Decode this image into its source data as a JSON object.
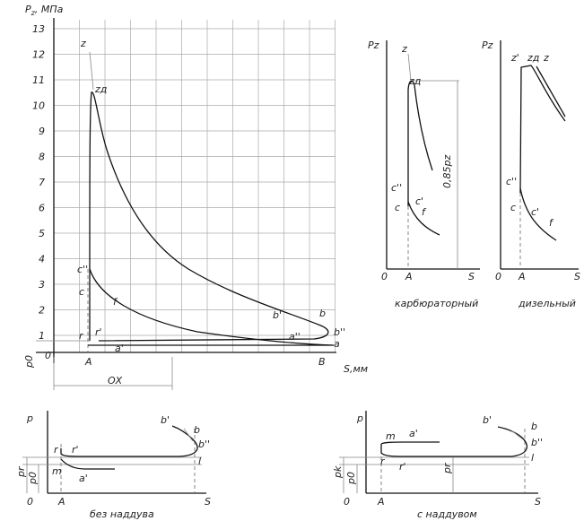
{
  "main": {
    "axis_symbol": "P",
    "axis_sub": "z",
    "axis_unit": ", МПа",
    "y_ticks": [
      "13",
      "12",
      "11",
      "10",
      "9",
      "8",
      "7",
      "6",
      "5",
      "4",
      "3",
      "2",
      "1"
    ],
    "origin": "0",
    "x_axis": "S,мм",
    "p0": "p0",
    "ox": "ОХ",
    "points": {
      "z": "z",
      "zd": "zд",
      "c2": "c''",
      "c": "c",
      "f": "f",
      "r": "r",
      "r1": "r'",
      "a1": "a'",
      "A": "A",
      "B": "B",
      "b1": "b'",
      "b": "b",
      "b2": "b''",
      "a2": "a''",
      "a": "a"
    }
  },
  "carb": {
    "axis": "Pz",
    "z": "z",
    "zd": "zд",
    "c2": "c''",
    "c1": "c'",
    "c": "c",
    "f": "f",
    "origin": "0",
    "A": "A",
    "S": "S",
    "dim": "0,85pz",
    "caption": "карбюраторный"
  },
  "diesel": {
    "axis": "Pz",
    "z1": "z'",
    "zd": "zд",
    "z": "z",
    "c2": "c''",
    "c": "c",
    "c1": "c'",
    "f": "f",
    "origin": "0",
    "A": "A",
    "S": "S",
    "caption": "дизельный"
  },
  "no_boost": {
    "axis": "p",
    "r": "r",
    "r1": "r'",
    "b1": "b'",
    "b": "b",
    "b2": "b''",
    "l": "l",
    "m": "m",
    "a1": "a'",
    "pr": "pr",
    "p0": "p0",
    "origin": "0",
    "A": "A",
    "S": "S",
    "caption": "без наддува"
  },
  "boost": {
    "axis": "p",
    "m": "m",
    "a1": "a'",
    "b1": "b'",
    "b": "b",
    "b2": "b''",
    "l": "l",
    "r": "r",
    "r1": "r'",
    "pk": "pk",
    "pr": "pr",
    "p0": "p0",
    "origin": "0",
    "A": "A",
    "S": "S",
    "caption": "с наддувом"
  }
}
